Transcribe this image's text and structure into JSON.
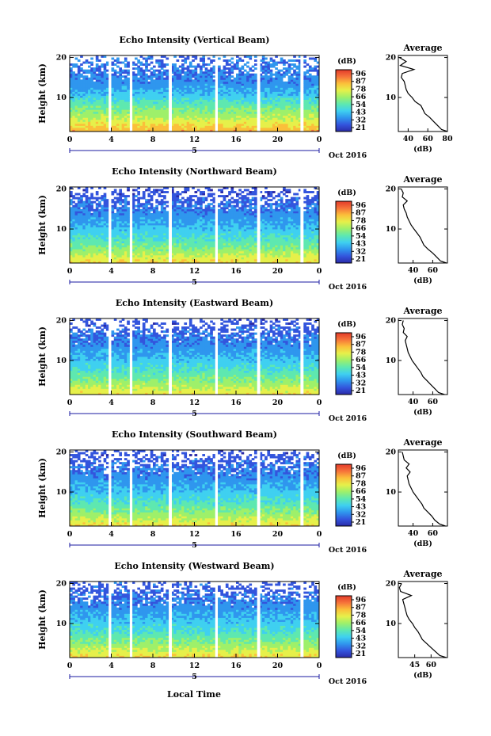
{
  "figure": {
    "bottom_xlabel": "Local Time",
    "date_label": "Oct 2016",
    "colorbar_unit": "(dB)",
    "colorbar_ticks": [
      "96",
      "87",
      "78",
      "66",
      "54",
      "43",
      "32",
      "21"
    ],
    "average_title": "Average",
    "average_xlabel": "(dB)",
    "ylabel": "Height (km)",
    "x_ticks": [
      "0",
      "4",
      "8",
      "12",
      "16",
      "20",
      "0"
    ],
    "day_label": "5",
    "y_ticks": [
      "20",
      "10"
    ],
    "colors": {
      "scale": [
        "#2b2ba8",
        "#3355dd",
        "#2f96ee",
        "#3fd0f0",
        "#5ee8b0",
        "#9ef06a",
        "#e6f04a",
        "#fbbf3a",
        "#f6733a",
        "#e33a2a"
      ],
      "gap": "#ffffff",
      "line": "#000000"
    }
  },
  "chart_data": [
    {
      "type": "heatmap",
      "title": "Echo Intensity (Vertical Beam)",
      "x_range_hours": [
        0,
        24
      ],
      "y_range_km": [
        1.5,
        20.5
      ],
      "data_gaps_hours": [
        [
          3.75,
          4.0
        ],
        [
          5.8,
          6.0
        ],
        [
          9.6,
          9.8
        ],
        [
          14.0,
          14.2
        ],
        [
          18.1,
          18.3
        ],
        [
          22.2,
          22.4
        ]
      ],
      "intensity_db_by_height": {
        "heights_km": [
          2,
          5,
          8,
          11,
          14,
          17,
          19
        ],
        "values": [
          80,
          66,
          55,
          43,
          36,
          34,
          33
        ]
      },
      "average": {
        "xlim": [
          30,
          80
        ],
        "x_ticks": [
          "40",
          "60",
          "80"
        ],
        "y_ticks": [
          "20",
          "10"
        ],
        "profile_km": [
          1.5,
          2,
          3,
          4,
          5,
          6,
          7,
          8,
          9,
          10,
          11,
          12,
          13,
          14,
          15,
          16,
          17,
          18,
          19,
          20
        ],
        "profile_db": [
          80,
          74,
          70,
          66,
          62,
          57,
          55,
          53,
          47,
          44,
          40,
          38,
          37,
          36,
          33,
          34,
          46,
          32,
          38,
          31
        ]
      }
    },
    {
      "type": "heatmap",
      "title": "Echo Intensity (Northward Beam)",
      "x_range_hours": [
        0,
        24
      ],
      "y_range_km": [
        1.5,
        20.5
      ],
      "data_gaps_hours": [
        [
          3.75,
          4.0
        ],
        [
          5.8,
          6.0
        ],
        [
          9.6,
          9.8
        ],
        [
          14.0,
          14.2
        ],
        [
          18.1,
          18.3
        ],
        [
          22.2,
          22.4
        ]
      ],
      "intensity_db_by_height": {
        "heights_km": [
          2,
          5,
          8,
          11,
          14,
          17,
          19
        ],
        "values": [
          74,
          60,
          50,
          42,
          36,
          31,
          28
        ]
      },
      "average": {
        "xlim": [
          25,
          75
        ],
        "x_ticks": [
          "40",
          "60"
        ],
        "y_ticks": [
          "20",
          "10"
        ],
        "profile_km": [
          1.5,
          2,
          3,
          4,
          5,
          6,
          7,
          8,
          9,
          10,
          11,
          12,
          13,
          14,
          15,
          16,
          17,
          18,
          19,
          20
        ],
        "profile_db": [
          74,
          68,
          64,
          60,
          55,
          51,
          49,
          47,
          44,
          41,
          38,
          36,
          34,
          33,
          31,
          30,
          34,
          29,
          30,
          28
        ]
      }
    },
    {
      "type": "heatmap",
      "title": "Echo Intensity (Eastward Beam)",
      "x_range_hours": [
        0,
        24
      ],
      "y_range_km": [
        1.5,
        20.5
      ],
      "data_gaps_hours": [
        [
          3.75,
          4.0
        ],
        [
          5.8,
          6.0
        ],
        [
          9.6,
          9.8
        ],
        [
          14.0,
          14.2
        ],
        [
          18.1,
          18.3
        ],
        [
          22.2,
          22.4
        ]
      ],
      "intensity_db_by_height": {
        "heights_km": [
          2,
          5,
          8,
          11,
          14,
          17,
          19
        ],
        "values": [
          72,
          60,
          50,
          42,
          36,
          31,
          29
        ]
      },
      "average": {
        "xlim": [
          25,
          75
        ],
        "x_ticks": [
          "40",
          "60"
        ],
        "y_ticks": [
          "20",
          "10"
        ],
        "profile_km": [
          1.5,
          2,
          3,
          4,
          5,
          6,
          7,
          8,
          9,
          10,
          11,
          12,
          13,
          14,
          15,
          16,
          17,
          18,
          19,
          20
        ],
        "profile_db": [
          72,
          66,
          62,
          58,
          54,
          50,
          48,
          45,
          42,
          39,
          37,
          35,
          34,
          33,
          32,
          34,
          30,
          31,
          29,
          30
        ]
      }
    },
    {
      "type": "heatmap",
      "title": "Echo Intensity (Southward Beam)",
      "x_range_hours": [
        0,
        24
      ],
      "y_range_km": [
        1.5,
        20.5
      ],
      "data_gaps_hours": [
        [
          3.75,
          4.0
        ],
        [
          5.8,
          6.0
        ],
        [
          9.6,
          9.8
        ],
        [
          14.0,
          14.2
        ],
        [
          18.1,
          18.3
        ],
        [
          22.2,
          22.4
        ]
      ],
      "intensity_db_by_height": {
        "heights_km": [
          2,
          5,
          8,
          11,
          14,
          17,
          19
        ],
        "values": [
          73,
          60,
          50,
          42,
          36,
          32,
          29
        ]
      },
      "average": {
        "xlim": [
          25,
          75
        ],
        "x_ticks": [
          "40",
          "60"
        ],
        "y_ticks": [
          "20",
          "10"
        ],
        "profile_km": [
          1.5,
          2,
          3,
          4,
          5,
          6,
          7,
          8,
          9,
          10,
          11,
          12,
          13,
          14,
          15,
          16,
          17,
          18,
          19,
          20
        ],
        "profile_db": [
          73,
          67,
          62,
          59,
          55,
          51,
          49,
          46,
          43,
          40,
          38,
          36,
          35,
          34,
          37,
          33,
          36,
          31,
          30,
          29
        ]
      }
    },
    {
      "type": "heatmap",
      "title": "Echo Intensity (Westward Beam)",
      "x_range_hours": [
        0,
        24
      ],
      "y_range_km": [
        1.5,
        20.5
      ],
      "data_gaps_hours": [
        [
          3.75,
          4.0
        ],
        [
          5.8,
          6.0
        ],
        [
          9.6,
          9.8
        ],
        [
          14.0,
          14.2
        ],
        [
          18.1,
          18.3
        ],
        [
          22.2,
          22.4
        ]
      ],
      "intensity_db_by_height": {
        "heights_km": [
          2,
          5,
          8,
          11,
          14,
          17,
          19
        ],
        "values": [
          74,
          61,
          51,
          43,
          37,
          33,
          30
        ]
      },
      "average": {
        "xlim": [
          30,
          75
        ],
        "x_ticks": [
          "45",
          "60"
        ],
        "y_ticks": [
          "20",
          "10"
        ],
        "profile_km": [
          1.5,
          2,
          3,
          4,
          5,
          6,
          7,
          8,
          9,
          10,
          11,
          12,
          13,
          14,
          15,
          16,
          17,
          18,
          19,
          20
        ],
        "profile_db": [
          74,
          68,
          64,
          60,
          56,
          52,
          50,
          48,
          45,
          43,
          40,
          38,
          37,
          36,
          35,
          34,
          42,
          32,
          31,
          33
        ]
      }
    }
  ]
}
